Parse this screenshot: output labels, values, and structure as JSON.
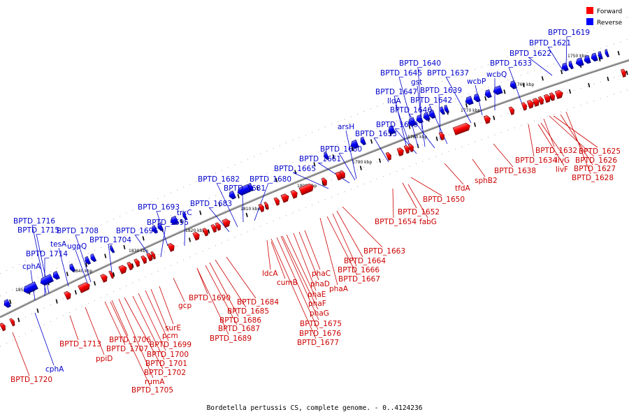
{
  "legend": {
    "items": [
      {
        "label": "Forward",
        "color": "#ff0000"
      },
      {
        "label": "Reverse",
        "color": "#0000ff"
      }
    ]
  },
  "caption": "Bordetella pertussis CS, complete genome. - 0..4124236",
  "colors": {
    "forward": "#ff0000",
    "reverse": "#0000ff",
    "backbone": "#808080",
    "ticks": "#000000"
  },
  "ruler_labels": [
    "1750 kbp",
    "1760 kbp",
    "1770 kbp",
    "1780 kbp",
    "1790 kbp",
    "1800 kbp",
    "1810 kbp",
    "1820 kbp",
    "1830 kbp",
    "1840 kbp",
    "1850 kbp"
  ],
  "reverse_labels": [
    "BPTD_1619",
    "BPTD_1621",
    "BPTD_1622",
    "BPTD_1633",
    "wcbQ",
    "wcbP",
    "BPTD_1637",
    "BPTD_1640",
    "BPTD_1645",
    "gst",
    "BPTD_1639",
    "BPTD_1647",
    "lldA",
    "BPTD_1642",
    "BPTD_1646",
    "BPTD_1649",
    "BPTD_1653",
    "arsH",
    "BPTD_1660",
    "BPTD_1661",
    "BPTD_1665",
    "BPTD_1680",
    "BPTD_1682",
    "BPTD_1681",
    "BPTD_1683",
    "BPTD_1693",
    "trxC",
    "BPTD_1695",
    "BPTD_1696",
    "BPTD_1704",
    "BPTD_1708",
    "ugpQ",
    "BPTD_1716",
    "BPTD_1715",
    "tesA",
    "BPTD_1714",
    "cphA",
    "cphA"
  ],
  "forward_labels": [
    "BPTD_1625",
    "BPTD_1632",
    "BPTD_1626",
    "BPTD_1634",
    "livG",
    "BPTD_1627",
    "livF",
    "BPTD_1628",
    "BPTD_1638",
    "sphB2",
    "tfdA",
    "BPTD_1650",
    "BPTD_1652",
    "fabG",
    "BPTD_1654",
    "BPTD_1663",
    "BPTD_1664",
    "BPTD_1666",
    "BPTD_1667",
    "phaA",
    "phaC",
    "phaD",
    "phaE",
    "phaF",
    "phaG",
    "ldcA",
    "cumB",
    "BPTD_1675",
    "BPTD_1676",
    "BPTD_1677",
    "BPTD_1684",
    "BPTD_1685",
    "BPTD_1686",
    "BPTD_1687",
    "BPTD_1689",
    "BPTD_1690",
    "gcp",
    "surE",
    "pcm",
    "BPTD_1699",
    "BPTD_1700",
    "BPTD_1701",
    "BPTD_1702",
    "rumA",
    "BPTD_1705",
    "BPTD_1706",
    "BPTD_1707",
    "ppiD",
    "BPTD_1713",
    "BPTD_1720"
  ]
}
